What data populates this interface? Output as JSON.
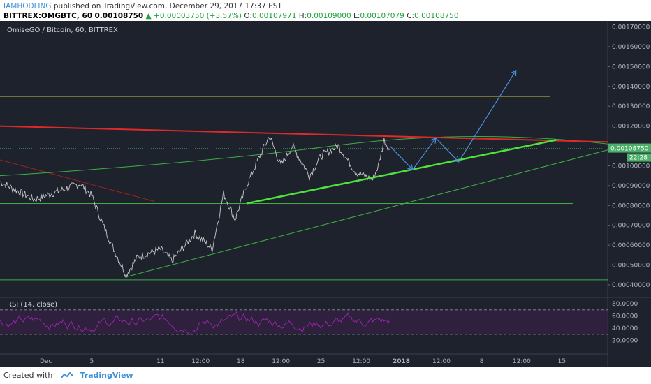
{
  "header": {
    "author": "IAMHODLING",
    "published": "published on TradingView.com, December 29, 2017 17:37 EST",
    "symbol": "BITTREX:OMGBTC, 60",
    "last": "0.00108750",
    "change": "+0.00003750 (+3.57%)",
    "o_label": "O:",
    "o_val": "0.00107971",
    "h_label": "H:",
    "h_val": "0.00109000",
    "l_label": "L:",
    "l_val": "0.00107079",
    "c_label": "C:",
    "c_val": "0.00108750"
  },
  "footer": {
    "created_with": "Created with",
    "brand": "TradingView"
  },
  "chart_data": {
    "type": "line",
    "title": "OmiseGO / Bitcoin, 60, BITTREX",
    "price_axis": {
      "ylim": [
        0.00034,
        0.00173
      ],
      "ticks": [
        "0.00170000",
        "0.00160000",
        "0.00150000",
        "0.00140000",
        "0.00130000",
        "0.00120000",
        "0.00110000",
        "0.00100000",
        "0.00090000",
        "0.00080000",
        "0.00070000",
        "0.00060000",
        "0.00050000",
        "0.00040000"
      ],
      "tick_values": [
        0.0017,
        0.0016,
        0.0015,
        0.0014,
        0.0013,
        0.0012,
        0.0011,
        0.001,
        0.0009,
        0.0008,
        0.0007,
        0.0006,
        0.0005,
        0.0004
      ],
      "last_label": "0.00108750",
      "countdown_label": "22:28"
    },
    "rsi": {
      "title": "RSI (14, close)",
      "ylim": [
        14,
        88
      ],
      "ticks": [
        "80.0000",
        "60.0000",
        "40.0000",
        "20.0000"
      ],
      "tick_values": [
        80,
        60,
        40,
        20
      ],
      "upper_band": 70,
      "lower_band": 30
    },
    "x_axis": {
      "ticks": [
        "Dec",
        "5",
        "11",
        "12:00",
        "18",
        "12:00",
        "25",
        "12:00",
        "2018",
        "12:00",
        "8",
        "12:00",
        "15"
      ],
      "tick_days": [
        1,
        5,
        11,
        14.5,
        18,
        21.5,
        25,
        28.5,
        32,
        35.5,
        39,
        42.5,
        46
      ],
      "xlim": [
        -3,
        50
      ]
    },
    "price_series_summary": [
      {
        "day": -3,
        "price": 0.00092
      },
      {
        "day": 0,
        "price": 0.00083
      },
      {
        "day": 3,
        "price": 0.00089
      },
      {
        "day": 4,
        "price": 0.00091
      },
      {
        "day": 5,
        "price": 0.00085
      },
      {
        "day": 6,
        "price": 0.0007
      },
      {
        "day": 7,
        "price": 0.00057
      },
      {
        "day": 8,
        "price": 0.00045
      },
      {
        "day": 9,
        "price": 0.00054
      },
      {
        "day": 11,
        "price": 0.00058
      },
      {
        "day": 12,
        "price": 0.00052
      },
      {
        "day": 14,
        "price": 0.00066
      },
      {
        "day": 15.5,
        "price": 0.00058
      },
      {
        "day": 16.5,
        "price": 0.00086
      },
      {
        "day": 17.5,
        "price": 0.00073
      },
      {
        "day": 18.5,
        "price": 0.0009
      },
      {
        "day": 19.5,
        "price": 0.00103
      },
      {
        "day": 20.5,
        "price": 0.00115
      },
      {
        "day": 21.5,
        "price": 0.001
      },
      {
        "day": 22.5,
        "price": 0.0011
      },
      {
        "day": 24,
        "price": 0.00095
      },
      {
        "day": 25,
        "price": 0.00105
      },
      {
        "day": 26.5,
        "price": 0.0011
      },
      {
        "day": 28,
        "price": 0.00097
      },
      {
        "day": 29.5,
        "price": 0.00093
      },
      {
        "day": 30,
        "price": 0.001
      },
      {
        "day": 30.5,
        "price": 0.00113
      },
      {
        "day": 31,
        "price": 0.00108
      }
    ],
    "drawings": {
      "resistance_red": [
        {
          "day": -3,
          "price": 0.0012
        },
        {
          "day": 50,
          "price": 0.00112
        }
      ],
      "support_green_bold": [
        {
          "day": 18.5,
          "price": 0.00081
        },
        {
          "day": 45.5,
          "price": 0.00113
        }
      ],
      "forecast_path": [
        {
          "day": 31,
          "price": 0.0011
        },
        {
          "day": 33,
          "price": 0.00098
        },
        {
          "day": 35,
          "price": 0.00114
        },
        {
          "day": 37,
          "price": 0.00102
        },
        {
          "day": 42,
          "price": 0.00148
        }
      ]
    }
  },
  "colors": {
    "background": "#1e222d",
    "price_line": "#c8c8c8",
    "resistance": "#e02a2a",
    "support": "#4de33a",
    "thin_green": "#3cb043",
    "yellow": "#c8c83c",
    "forecast": "#4a90d9",
    "rsi": "#9c27b0",
    "label_bg": "#4caf6a"
  }
}
